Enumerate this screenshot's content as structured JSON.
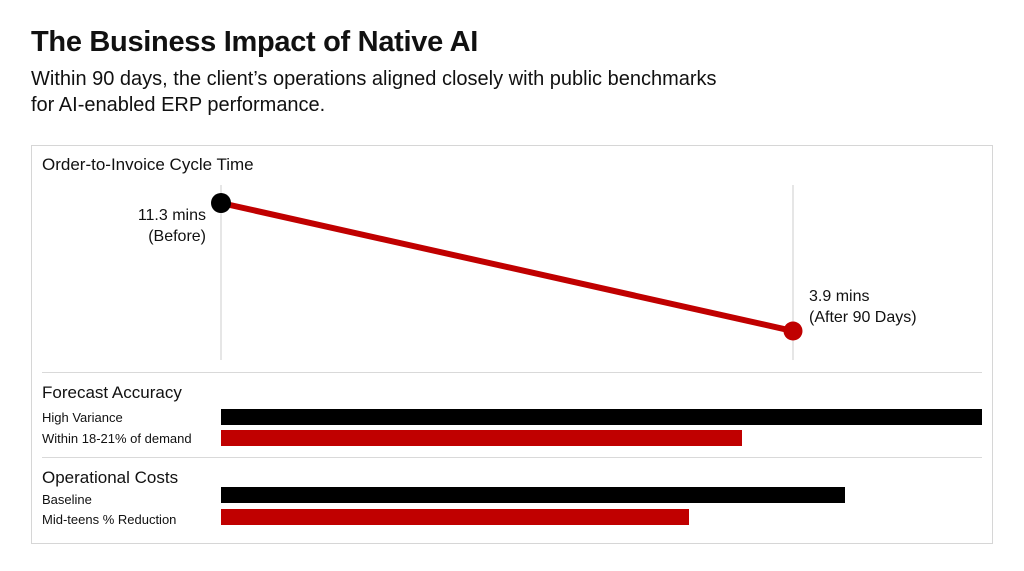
{
  "header": {
    "title": "The Business Impact of Native AI",
    "subtitle": "Within 90 days, the client’s operations aligned closely with public benchmarks for AI-enabled ERP performance."
  },
  "colors": {
    "before": "#000000",
    "after": "#c00000",
    "guide": "#cccccc"
  },
  "chart_data": [
    {
      "type": "line",
      "title": "Order-to-Invoice Cycle Time",
      "unit": "mins",
      "points": [
        {
          "value": 11.3,
          "label_value": "11.3 mins",
          "label_note": "(Before)",
          "color": "#000000"
        },
        {
          "value": 3.9,
          "label_value": "3.9 mins",
          "label_note": "(After 90 Days)",
          "color": "#c00000"
        }
      ]
    },
    {
      "type": "bar",
      "orientation": "horizontal",
      "title": "Forecast Accuracy",
      "categories": [
        "High Variance",
        "Within 18-21% of demand"
      ],
      "values": [
        1.0,
        0.685
      ],
      "colors": [
        "#000000",
        "#c00000"
      ]
    },
    {
      "type": "bar",
      "orientation": "horizontal",
      "title": "Operational Costs",
      "categories": [
        "Baseline",
        "Mid-teens % Reduction"
      ],
      "values": [
        0.82,
        0.615
      ],
      "colors": [
        "#000000",
        "#c00000"
      ]
    }
  ]
}
